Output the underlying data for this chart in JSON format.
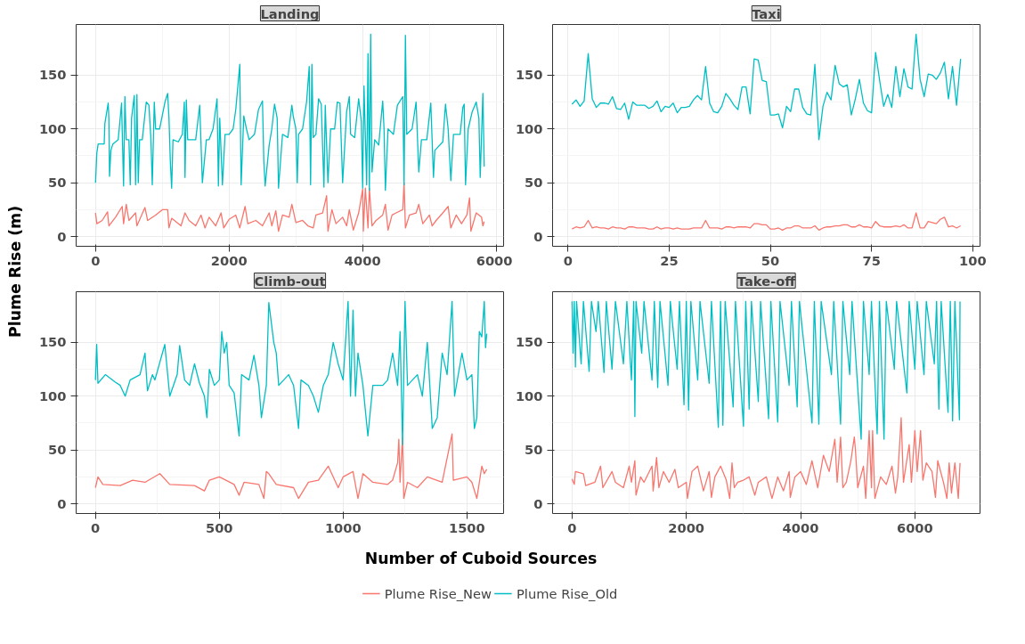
{
  "chart_data": [
    {
      "type": "line",
      "title": "Landing",
      "xlabel": "Number of Cuboid Sources",
      "ylabel": "Plume Rise (m)",
      "legend": "bottom",
      "grid": true,
      "line_style": "solid",
      "xlim": [
        -290,
        6110
      ],
      "xticks": [
        0,
        2000,
        4000,
        6000
      ],
      "ylim": [
        -9,
        197
      ],
      "yticks": [
        0,
        50,
        100,
        150
      ],
      "series": [
        {
          "name": "Plume Rise_New",
          "color": "#f8766d",
          "x": [
            0,
            20,
            100,
            180,
            200,
            300,
            400,
            420,
            460,
            500,
            600,
            620,
            740,
            780,
            900,
            1000,
            1080,
            1100,
            1140,
            1280,
            1340,
            1400,
            1500,
            1580,
            1640,
            1700,
            1800,
            1880,
            1920,
            2000,
            2100,
            2160,
            2240,
            2280,
            2400,
            2500,
            2600,
            2640,
            2700,
            2740,
            2800,
            2900,
            2940,
            3000,
            3100,
            3180,
            3260,
            3300,
            3400,
            3460,
            3480,
            3540,
            3600,
            3700,
            3760,
            3800,
            3860,
            3940,
            4000,
            4010,
            4040,
            4080,
            4100,
            4140,
            4200,
            4300,
            4340,
            4380,
            4440,
            4500,
            4600,
            4620,
            4640,
            4700,
            4800,
            4840,
            4900,
            5000,
            5040,
            5100,
            5200,
            5280,
            5320,
            5400,
            5480,
            5560,
            5600,
            5620,
            5700,
            5780,
            5800,
            5820
          ],
          "values": [
            22,
            12,
            15,
            23,
            10,
            18,
            28,
            12,
            30,
            15,
            22,
            10,
            27,
            15,
            20,
            25,
            25,
            8,
            17,
            10,
            22,
            15,
            10,
            20,
            8,
            18,
            10,
            22,
            8,
            16,
            20,
            8,
            28,
            12,
            15,
            10,
            22,
            10,
            24,
            5,
            20,
            18,
            30,
            13,
            15,
            10,
            8,
            20,
            22,
            38,
            5,
            25,
            12,
            18,
            10,
            25,
            6,
            22,
            44,
            5,
            45,
            8,
            45,
            10,
            15,
            20,
            30,
            6,
            20,
            22,
            25,
            50,
            8,
            20,
            22,
            30,
            12,
            20,
            10,
            15,
            22,
            28,
            8,
            20,
            12,
            20,
            36,
            5,
            22,
            18,
            10,
            14
          ]
        },
        {
          "name": "Plume Rise_Old",
          "color": "#00bfc4",
          "x": [
            0,
            20,
            40,
            130,
            140,
            190,
            200,
            210,
            230,
            260,
            340,
            390,
            420,
            440,
            460,
            500,
            520,
            540,
            580,
            600,
            620,
            640,
            660,
            700,
            760,
            800,
            830,
            850,
            880,
            900,
            960,
            1040,
            1080,
            1100,
            1120,
            1140,
            1160,
            1240,
            1300,
            1330,
            1340,
            1360,
            1380,
            1500,
            1560,
            1600,
            1660,
            1700,
            1760,
            1820,
            1840,
            1860,
            1900,
            1940,
            2000,
            2060,
            2100,
            2160,
            2180,
            2220,
            2260,
            2300,
            2380,
            2440,
            2500,
            2520,
            2540,
            2600,
            2640,
            2680,
            2720,
            2740,
            2800,
            2880,
            2940,
            2960,
            3000,
            3020,
            3040,
            3100,
            3160,
            3200,
            3220,
            3240,
            3260,
            3300,
            3340,
            3380,
            3420,
            3440,
            3480,
            3520,
            3580,
            3620,
            3660,
            3700,
            3760,
            3800,
            3820,
            3880,
            3940,
            3980,
            4000,
            4020,
            4060,
            4080,
            4100,
            4120,
            4140,
            4180,
            4240,
            4300,
            4320,
            4340,
            4380,
            4460,
            4520,
            4600,
            4620,
            4640,
            4660,
            4740,
            4800,
            4840,
            4880,
            4960,
            5020,
            5060,
            5080,
            5200,
            5240,
            5280,
            5320,
            5360,
            5460,
            5500,
            5520,
            5540,
            5580,
            5640,
            5700,
            5740,
            5760,
            5800,
            5820
          ],
          "values": [
            50,
            78,
            86,
            86,
            105,
            124,
            110,
            56,
            80,
            86,
            90,
            124,
            47,
            130,
            90,
            90,
            48,
            110,
            131,
            48,
            132,
            50,
            90,
            90,
            125,
            122,
            90,
            48,
            125,
            100,
            100,
            125,
            133,
            110,
            70,
            45,
            90,
            88,
            95,
            125,
            55,
            127,
            90,
            90,
            122,
            50,
            90,
            90,
            100,
            128,
            47,
            110,
            48,
            95,
            95,
            100,
            118,
            160,
            48,
            112,
            100,
            90,
            95,
            118,
            126,
            70,
            47,
            85,
            100,
            123,
            110,
            45,
            95,
            92,
            122,
            112,
            100,
            50,
            95,
            100,
            125,
            158,
            48,
            160,
            92,
            95,
            128,
            123,
            46,
            122,
            50,
            100,
            100,
            125,
            124,
            50,
            116,
            130,
            95,
            92,
            128,
            107,
            45,
            140,
            48,
            170,
            43,
            188,
            60,
            90,
            85,
            126,
            100,
            43,
            100,
            95,
            122,
            130,
            48,
            187,
            95,
            100,
            125,
            60,
            90,
            90,
            124,
            55,
            80,
            88,
            123,
            100,
            52,
            95,
            95,
            120,
            123,
            48,
            100,
            116,
            125,
            110,
            55,
            133,
            65
          ]
        }
      ]
    },
    {
      "type": "line",
      "title": "Taxi",
      "grid": true,
      "line_style": "solid",
      "xlim": [
        -3.8,
        101.8
      ],
      "xticks": [
        0,
        25,
        50,
        75,
        100
      ],
      "ylim": [
        -9,
        197
      ],
      "yticks": [
        0,
        50,
        100,
        150
      ],
      "series": [
        {
          "color": "#f8766d",
          "x": [
            1,
            2,
            3,
            4,
            5,
            6,
            7,
            8,
            9,
            10,
            11,
            12,
            13,
            14,
            15,
            16,
            17,
            18,
            19,
            20,
            21,
            22,
            23,
            24,
            25,
            26,
            27,
            28,
            29,
            30,
            31,
            32,
            33,
            34,
            35,
            36,
            37,
            38,
            39,
            40,
            41,
            42,
            43,
            44,
            45,
            46,
            47,
            48,
            49,
            50,
            51,
            52,
            53,
            54,
            55,
            56,
            57,
            58,
            59,
            60,
            61,
            62,
            63,
            64,
            65,
            66,
            67,
            68,
            69,
            70,
            71,
            72,
            73,
            74,
            75,
            76,
            77,
            78,
            79,
            80,
            81,
            82,
            83,
            84,
            85,
            86,
            87,
            88,
            89,
            90,
            91,
            92,
            93,
            94,
            95,
            96,
            97
          ],
          "values": [
            7,
            9,
            8,
            9,
            15,
            8,
            9,
            8,
            8,
            7,
            9,
            8,
            8,
            7,
            9,
            9,
            8,
            8,
            8,
            7,
            7,
            9,
            7,
            8,
            8,
            7,
            8,
            7,
            7,
            7,
            8,
            8,
            8,
            15,
            8,
            8,
            8,
            7,
            9,
            9,
            8,
            9,
            9,
            9,
            8,
            12,
            12,
            11,
            11,
            7,
            7,
            8,
            6,
            8,
            8,
            10,
            10,
            8,
            8,
            8,
            10,
            6,
            8,
            9,
            9,
            10,
            10,
            11,
            11,
            9,
            9,
            11,
            9,
            9,
            8,
            14,
            10,
            9,
            9,
            9,
            10,
            9,
            11,
            8,
            8,
            22,
            8,
            8,
            14,
            13,
            12,
            16,
            18,
            9,
            10,
            8,
            10
          ]
        },
        {
          "color": "#00bfc4",
          "x": [
            1,
            2,
            3,
            4,
            5,
            6,
            7,
            8,
            9,
            10,
            11,
            12,
            13,
            14,
            15,
            16,
            17,
            18,
            19,
            20,
            21,
            22,
            23,
            24,
            25,
            26,
            27,
            28,
            29,
            30,
            31,
            32,
            33,
            34,
            35,
            36,
            37,
            38,
            39,
            40,
            41,
            42,
            43,
            44,
            45,
            46,
            47,
            48,
            49,
            50,
            51,
            52,
            53,
            54,
            55,
            56,
            57,
            58,
            59,
            60,
            61,
            62,
            63,
            64,
            65,
            66,
            67,
            68,
            69,
            70,
            71,
            72,
            73,
            74,
            75,
            76,
            77,
            78,
            79,
            80,
            81,
            82,
            83,
            84,
            85,
            86,
            87,
            88,
            89,
            90,
            91,
            92,
            93,
            94,
            95,
            96,
            97
          ],
          "values": [
            123,
            127,
            121,
            126,
            170,
            128,
            120,
            124,
            124,
            123,
            130,
            119,
            118,
            124,
            109,
            125,
            122,
            122,
            122,
            119,
            121,
            126,
            116,
            121,
            120,
            124,
            115,
            120,
            120,
            121,
            127,
            131,
            127,
            158,
            124,
            116,
            115,
            121,
            133,
            128,
            122,
            118,
            139,
            139,
            114,
            165,
            164,
            145,
            144,
            113,
            113,
            114,
            101,
            121,
            116,
            137,
            137,
            120,
            114,
            113,
            160,
            90,
            121,
            134,
            127,
            159,
            142,
            139,
            141,
            113,
            128,
            146,
            124,
            117,
            115,
            171,
            145,
            121,
            132,
            120,
            158,
            130,
            156,
            139,
            137,
            188,
            146,
            130,
            151,
            150,
            146,
            152,
            162,
            128,
            158,
            122,
            165
          ]
        }
      ]
    },
    {
      "type": "line",
      "title": "Climb-out",
      "grid": true,
      "line_style": "solid",
      "xlim": [
        -78,
        1648
      ],
      "xticks": [
        0,
        500,
        1000,
        1500
      ],
      "ylim": [
        -9,
        197
      ],
      "yticks": [
        0,
        50,
        100,
        150
      ],
      "series": [
        {
          "color": "#f8766d",
          "x": [
            0,
            10,
            30,
            100,
            150,
            200,
            260,
            300,
            400,
            440,
            460,
            500,
            560,
            580,
            600,
            660,
            680,
            690,
            700,
            730,
            800,
            820,
            860,
            900,
            940,
            980,
            1000,
            1040,
            1060,
            1080,
            1120,
            1180,
            1200,
            1220,
            1225,
            1230,
            1240,
            1245,
            1260,
            1300,
            1340,
            1400,
            1440,
            1445,
            1500,
            1520,
            1540,
            1560,
            1570,
            1580
          ],
          "values": [
            15,
            25,
            18,
            17,
            22,
            20,
            28,
            18,
            17,
            12,
            22,
            25,
            18,
            8,
            20,
            18,
            5,
            30,
            28,
            18,
            15,
            5,
            20,
            22,
            35,
            15,
            25,
            30,
            5,
            28,
            20,
            18,
            22,
            38,
            60,
            20,
            62,
            5,
            20,
            15,
            25,
            20,
            65,
            22,
            25,
            20,
            5,
            35,
            28,
            32
          ]
        },
        {
          "color": "#00bfc4",
          "x": [
            0,
            5,
            10,
            40,
            80,
            100,
            120,
            140,
            180,
            200,
            210,
            230,
            240,
            280,
            300,
            330,
            340,
            360,
            380,
            400,
            420,
            440,
            450,
            460,
            480,
            500,
            510,
            520,
            530,
            540,
            560,
            580,
            590,
            620,
            640,
            660,
            670,
            690,
            700,
            720,
            730,
            740,
            780,
            800,
            820,
            830,
            860,
            880,
            900,
            920,
            940,
            960,
            980,
            1000,
            1020,
            1030,
            1040,
            1050,
            1060,
            1080,
            1100,
            1120,
            1160,
            1180,
            1200,
            1220,
            1230,
            1240,
            1250,
            1260,
            1300,
            1320,
            1340,
            1360,
            1380,
            1400,
            1420,
            1440,
            1450,
            1480,
            1500,
            1520,
            1530,
            1540,
            1550,
            1560,
            1570,
            1575,
            1580
          ],
          "values": [
            115,
            148,
            112,
            120,
            113,
            110,
            100,
            115,
            120,
            140,
            105,
            120,
            115,
            148,
            100,
            120,
            147,
            115,
            110,
            130,
            112,
            100,
            80,
            125,
            110,
            115,
            160,
            140,
            150,
            110,
            103,
            63,
            120,
            115,
            138,
            110,
            80,
            110,
            187,
            150,
            140,
            110,
            120,
            110,
            70,
            115,
            110,
            100,
            85,
            110,
            120,
            150,
            130,
            115,
            188,
            100,
            180,
            100,
            140,
            110,
            63,
            110,
            110,
            115,
            140,
            110,
            160,
            55,
            188,
            110,
            120,
            100,
            150,
            70,
            80,
            140,
            120,
            188,
            100,
            140,
            115,
            120,
            70,
            80,
            160,
            155,
            188,
            145,
            158
          ]
        }
      ]
    },
    {
      "type": "line",
      "title": "Take-off",
      "grid": true,
      "line_style": "solid",
      "xlim": [
        -340,
        7140
      ],
      "xticks": [
        0,
        2000,
        4000,
        6000
      ],
      "ylim": [
        -9,
        197
      ],
      "yticks": [
        0,
        50,
        100,
        150
      ],
      "series": [
        {
          "color": "#f8766d",
          "x": [
            0,
            40,
            60,
            200,
            240,
            400,
            500,
            540,
            700,
            760,
            900,
            1000,
            1040,
            1100,
            1120,
            1200,
            1260,
            1400,
            1420,
            1480,
            1520,
            1600,
            1700,
            1800,
            1860,
            2000,
            2020,
            2100,
            2200,
            2300,
            2400,
            2440,
            2500,
            2600,
            2700,
            2760,
            2800,
            2840,
            2900,
            3000,
            3100,
            3200,
            3260,
            3400,
            3500,
            3600,
            3700,
            3800,
            3820,
            3900,
            4000,
            4100,
            4200,
            4300,
            4400,
            4500,
            4600,
            4640,
            4700,
            4740,
            4800,
            4880,
            4940,
            4960,
            5000,
            5100,
            5140,
            5200,
            5240,
            5260,
            5300,
            5400,
            5500,
            5600,
            5660,
            5700,
            5760,
            5800,
            5900,
            5940,
            6000,
            6040,
            6100,
            6140,
            6200,
            6300,
            6360,
            6400,
            6500,
            6560,
            6600,
            6640,
            6700,
            6760,
            6790
          ],
          "values": [
            23,
            18,
            30,
            28,
            17,
            20,
            35,
            15,
            30,
            20,
            15,
            35,
            20,
            40,
            8,
            25,
            20,
            35,
            12,
            43,
            15,
            30,
            20,
            32,
            15,
            20,
            5,
            30,
            35,
            12,
            30,
            6,
            25,
            35,
            22,
            5,
            38,
            15,
            20,
            22,
            25,
            8,
            20,
            25,
            5,
            25,
            12,
            30,
            6,
            25,
            30,
            18,
            40,
            15,
            45,
            30,
            60,
            20,
            62,
            15,
            20,
            40,
            62,
            50,
            15,
            35,
            5,
            68,
            15,
            68,
            5,
            25,
            18,
            35,
            10,
            25,
            80,
            20,
            55,
            20,
            68,
            30,
            68,
            22,
            38,
            30,
            6,
            40,
            20,
            5,
            38,
            10,
            38,
            5,
            38
          ]
        },
        {
          "color": "#00bfc4",
          "x": [
            0,
            20,
            40,
            60,
            80,
            160,
            200,
            300,
            340,
            420,
            460,
            560,
            600,
            700,
            760,
            900,
            960,
            1040,
            1080,
            1100,
            1120,
            1220,
            1260,
            1400,
            1440,
            1500,
            1540,
            1680,
            1720,
            1840,
            1880,
            1960,
            2000,
            2040,
            2080,
            2200,
            2240,
            2400,
            2440,
            2560,
            2600,
            2640,
            2680,
            2820,
            2860,
            3000,
            3040,
            3100,
            3140,
            3260,
            3300,
            3440,
            3480,
            3600,
            3640,
            3800,
            3840,
            3940,
            3980,
            4200,
            4240,
            4320,
            4360,
            4540,
            4580,
            4700,
            4740,
            4860,
            4900,
            5060,
            5100,
            5200,
            5240,
            5340,
            5380,
            5460,
            5500,
            5640,
            5680,
            5860,
            5900,
            6000,
            6040,
            6160,
            6200,
            6340,
            6380,
            6420,
            6460,
            6580,
            6620,
            6660,
            6700,
            6780,
            6790
          ],
          "values": [
            188,
            140,
            188,
            127,
            188,
            130,
            188,
            123,
            188,
            160,
            188,
            122,
            188,
            125,
            188,
            130,
            188,
            115,
            188,
            81,
            188,
            140,
            188,
            115,
            188,
            108,
            188,
            110,
            188,
            125,
            188,
            92,
            188,
            87,
            188,
            115,
            188,
            112,
            188,
            71,
            188,
            73,
            188,
            90,
            188,
            72,
            188,
            88,
            188,
            95,
            188,
            79,
            188,
            76,
            188,
            110,
            188,
            90,
            188,
            75,
            188,
            74,
            188,
            120,
            188,
            74,
            188,
            120,
            188,
            60,
            188,
            120,
            188,
            65,
            188,
            60,
            188,
            125,
            188,
            103,
            188,
            125,
            188,
            120,
            188,
            130,
            188,
            88,
            188,
            85,
            188,
            77,
            188,
            78,
            188
          ]
        }
      ]
    }
  ]
}
